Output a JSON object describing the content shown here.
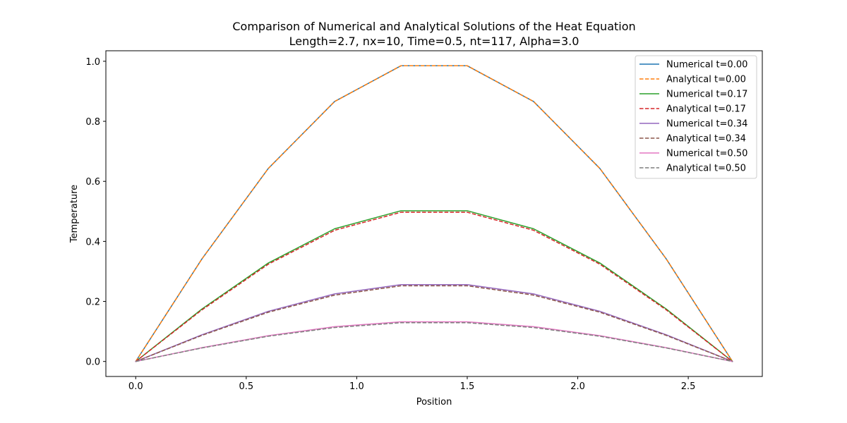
{
  "chart_data": {
    "type": "line",
    "title": "Comparison of Numerical and Analytical Solutions of the Heat Equation",
    "subtitle": "Length=2.7, nx=10, Time=0.5, nt=117, Alpha=3.0",
    "xlabel": "Position",
    "ylabel": "Temperature",
    "xlim": [
      -0.135,
      2.835
    ],
    "ylim": [
      -0.05,
      1.035
    ],
    "xticks": [
      "0.0",
      "0.5",
      "1.0",
      "1.5",
      "2.0",
      "2.5"
    ],
    "yticks": [
      "0.0",
      "0.2",
      "0.4",
      "0.6",
      "0.8",
      "1.0"
    ],
    "grid": false,
    "legend_position": "top-right",
    "x": [
      0.0,
      0.3,
      0.6,
      0.9,
      1.2,
      1.5,
      1.8,
      2.1,
      2.4,
      2.7
    ],
    "series": [
      {
        "name": "Numerical t=0.00",
        "color": "#1f77b4",
        "style": "solid",
        "values": [
          0.0,
          0.342,
          0.643,
          0.866,
          0.985,
          0.985,
          0.866,
          0.643,
          0.342,
          0.0
        ]
      },
      {
        "name": "Analytical t=0.00",
        "color": "#ff7f0e",
        "style": "dashed",
        "values": [
          0.0,
          0.342,
          0.643,
          0.866,
          0.985,
          0.985,
          0.866,
          0.643,
          0.342,
          0.0
        ]
      },
      {
        "name": "Numerical t=0.17",
        "color": "#2ca02c",
        "style": "solid",
        "values": [
          0.0,
          0.175,
          0.328,
          0.442,
          0.502,
          0.502,
          0.442,
          0.328,
          0.175,
          0.0
        ]
      },
      {
        "name": "Analytical t=0.17",
        "color": "#d62728",
        "style": "dashed",
        "values": [
          0.0,
          0.172,
          0.324,
          0.437,
          0.497,
          0.497,
          0.437,
          0.324,
          0.172,
          0.0
        ]
      },
      {
        "name": "Numerical t=0.34",
        "color": "#9467bd",
        "style": "solid",
        "values": [
          0.0,
          0.089,
          0.167,
          0.225,
          0.256,
          0.256,
          0.225,
          0.167,
          0.089,
          0.0
        ]
      },
      {
        "name": "Analytical t=0.34",
        "color": "#8c564b",
        "style": "dashed",
        "values": [
          0.0,
          0.087,
          0.164,
          0.221,
          0.252,
          0.252,
          0.221,
          0.164,
          0.087,
          0.0
        ]
      },
      {
        "name": "Numerical t=0.50",
        "color": "#e377c2",
        "style": "solid",
        "values": [
          0.0,
          0.046,
          0.086,
          0.116,
          0.132,
          0.132,
          0.116,
          0.086,
          0.046,
          0.0
        ]
      },
      {
        "name": "Analytical t=0.50",
        "color": "#7f7f7f",
        "style": "dashed",
        "values": [
          0.0,
          0.045,
          0.084,
          0.113,
          0.129,
          0.129,
          0.113,
          0.084,
          0.045,
          0.0
        ]
      }
    ]
  }
}
